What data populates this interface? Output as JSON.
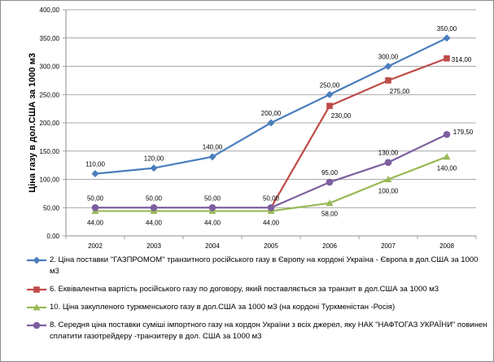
{
  "chart_data": {
    "type": "line",
    "ylabel": "Ціна газу в дол.США за 1000 м3",
    "categories": [
      "2002",
      "2003",
      "2004",
      "2005",
      "2006",
      "2007",
      "2008"
    ],
    "ylim": [
      0,
      400
    ],
    "yticks": [
      "0,00",
      "50,00",
      "100,00",
      "150,00",
      "200,00",
      "250,00",
      "300,00",
      "350,00",
      "400,00"
    ],
    "grid": true,
    "legend_position": "bottom",
    "series": [
      {
        "name": "2. Ціна поставки \"ГАЗПРОМОМ\" транзитного російського газу в Європу на кордоні Україна - Європа в дол.США за 1000 м3",
        "color": "#4a7ebb",
        "marker": "diamond",
        "values": [
          110,
          120,
          140,
          200,
          250,
          300,
          350
        ],
        "labels": [
          "110,00",
          "120,00",
          "140,00",
          "200,00",
          "250,00",
          "300,00",
          "350,00"
        ]
      },
      {
        "name": "6. Еквівалентна вартість російського газу по договору, який поставляється за транзит в дол.США за 1000 м3",
        "color": "#be4b48",
        "marker": "square",
        "values": [
          null,
          null,
          null,
          50,
          230,
          275,
          314
        ],
        "labels": [
          null,
          null,
          null,
          null,
          "230,00",
          "275,00",
          "314,00"
        ]
      },
      {
        "name": "10. Ціна закупленого туркменського газу в дол.США за 1000 м3 (на кордоні Туркменістан -Росія)",
        "color": "#98b954",
        "marker": "triangle",
        "values": [
          44,
          44,
          44,
          44,
          58,
          100,
          140
        ],
        "labels": [
          "44,00",
          "44,00",
          "44,00",
          "44,00",
          "58,00",
          "100,00",
          "140,00"
        ]
      },
      {
        "name": "8. Середня ціна поставки суміші імпортного газу на кордон України з всіх джерел, яку НАК \"НАФТОГАЗ УКРАЇНИ\" повинен сплатити газотрейдеру -транзитеру в дол. США за 1000 м3",
        "color": "#7d5fa0",
        "marker": "circle",
        "values": [
          50,
          50,
          50,
          50,
          95,
          130,
          179.5
        ],
        "labels": [
          "50,00",
          "50,00",
          "50,00",
          "50,00",
          "95,00",
          "130,00",
          "179,50"
        ]
      }
    ]
  }
}
